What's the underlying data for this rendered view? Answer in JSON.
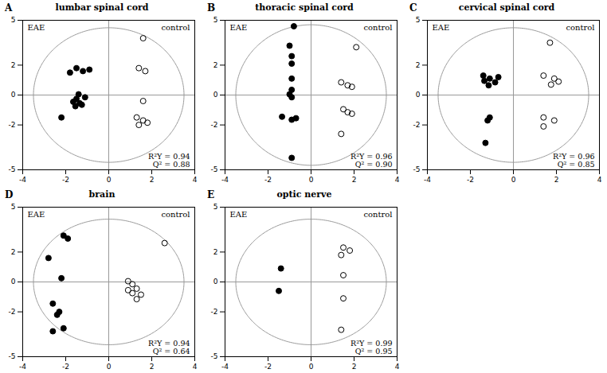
{
  "chart_data": [
    {
      "type": "scatter",
      "title": "lumbar spinal cord",
      "panel_label": "A",
      "annotations": [
        "R²Y = 0.94",
        "Q² = 0.88"
      ],
      "xlim": [
        -4,
        4
      ],
      "ylim": [
        -5,
        5
      ],
      "xticks": [
        -4,
        -2,
        0,
        2,
        4
      ],
      "yticks": [
        -5,
        -2,
        0,
        2,
        5
      ],
      "grid": false,
      "ellipse": {
        "x": 0,
        "y": 0,
        "rx": 3.5,
        "ry": 4.5,
        "color": "#999999"
      },
      "reference_lines": {
        "x": 0,
        "y": 0,
        "color": "#999999"
      },
      "series": [
        {
          "name": "EAE",
          "color": "#000000",
          "marker": "filled_circle",
          "values": [
            [
              -1.5,
              1.8
            ],
            [
              -1.8,
              1.5
            ],
            [
              -1.2,
              1.6
            ],
            [
              -0.9,
              1.7
            ],
            [
              -1.4,
              0.05
            ],
            [
              -1.1,
              -0.15
            ],
            [
              -1.5,
              -0.25
            ],
            [
              -1.65,
              -0.45
            ],
            [
              -1.35,
              -0.55
            ],
            [
              -1.25,
              -0.65
            ],
            [
              -1.55,
              -0.75
            ],
            [
              -2.2,
              -1.5
            ]
          ]
        },
        {
          "name": "control",
          "color": "#000000",
          "marker": "open_circle",
          "values": [
            [
              1.6,
              3.8
            ],
            [
              1.4,
              1.8
            ],
            [
              1.7,
              1.6
            ],
            [
              1.6,
              -0.4
            ],
            [
              1.3,
              -1.5
            ],
            [
              1.6,
              -1.7
            ],
            [
              1.8,
              -1.85
            ],
            [
              1.4,
              -2.0
            ]
          ]
        }
      ]
    },
    {
      "type": "scatter",
      "title": "thoracic spinal cord",
      "panel_label": "B",
      "annotations": [
        "R²Y = 0.96",
        "Q² = 0.90"
      ],
      "xlim": [
        -4,
        4
      ],
      "ylim": [
        -5,
        5
      ],
      "xticks": [
        -4,
        -2,
        0,
        2,
        4
      ],
      "yticks": [
        -5,
        -2,
        0,
        2,
        5
      ],
      "grid": false,
      "ellipse": {
        "x": 0,
        "y": 0,
        "rx": 3.5,
        "ry": 4.7,
        "color": "#999999"
      },
      "reference_lines": {
        "x": 0,
        "y": 0,
        "color": "#999999"
      },
      "series": [
        {
          "name": "EAE",
          "color": "#000000",
          "marker": "filled_circle",
          "values": [
            [
              -0.8,
              4.6
            ],
            [
              -1.0,
              3.3
            ],
            [
              -0.9,
              2.6
            ],
            [
              -0.9,
              2.1
            ],
            [
              -0.9,
              1.1
            ],
            [
              -0.9,
              0.35
            ],
            [
              -1.0,
              0.05
            ],
            [
              -0.9,
              -0.15
            ],
            [
              -1.35,
              -1.45
            ],
            [
              -0.9,
              -1.65
            ],
            [
              -0.7,
              -1.55
            ],
            [
              -0.9,
              -4.2
            ]
          ]
        },
        {
          "name": "control",
          "color": "#000000",
          "marker": "open_circle",
          "values": [
            [
              2.1,
              3.2
            ],
            [
              1.4,
              0.85
            ],
            [
              1.7,
              0.65
            ],
            [
              1.9,
              0.55
            ],
            [
              1.5,
              -0.95
            ],
            [
              1.7,
              -1.15
            ],
            [
              1.9,
              -1.25
            ],
            [
              1.4,
              -2.6
            ]
          ]
        }
      ]
    },
    {
      "type": "scatter",
      "title": "cervical spinal cord",
      "panel_label": "C",
      "annotations": [
        "R²Y = 0.96",
        "Q² = 0.85"
      ],
      "xlim": [
        -4,
        4
      ],
      "ylim": [
        -5,
        5
      ],
      "xticks": [
        -4,
        -2,
        0,
        2,
        4
      ],
      "yticks": [
        -5,
        -2,
        0,
        2,
        5
      ],
      "grid": false,
      "ellipse": {
        "x": 0,
        "y": 0,
        "rx": 3.5,
        "ry": 4.5,
        "color": "#999999"
      },
      "reference_lines": {
        "x": 0,
        "y": 0,
        "color": "#999999"
      },
      "series": [
        {
          "name": "EAE",
          "color": "#000000",
          "marker": "filled_circle",
          "values": [
            [
              -1.4,
              1.3
            ],
            [
              -1.1,
              1.1
            ],
            [
              -0.7,
              1.2
            ],
            [
              -1.35,
              0.95
            ],
            [
              -0.85,
              0.85
            ],
            [
              -1.15,
              0.65
            ],
            [
              -1.1,
              -1.5
            ],
            [
              -1.2,
              -1.7
            ],
            [
              -1.3,
              -3.2
            ]
          ]
        },
        {
          "name": "control",
          "color": "#000000",
          "marker": "open_circle",
          "values": [
            [
              1.7,
              3.5
            ],
            [
              1.4,
              1.3
            ],
            [
              1.9,
              1.1
            ],
            [
              2.1,
              0.9
            ],
            [
              1.75,
              0.7
            ],
            [
              1.4,
              -1.5
            ],
            [
              1.9,
              -1.7
            ],
            [
              1.4,
              -2.1
            ]
          ]
        }
      ]
    },
    {
      "type": "scatter",
      "title": "brain",
      "panel_label": "D",
      "annotations": [
        "R²Y = 0.94",
        "Q² = 0.64"
      ],
      "xlim": [
        -4,
        4
      ],
      "ylim": [
        -5,
        5
      ],
      "xticks": [
        -4,
        -2,
        0,
        2,
        4
      ],
      "yticks": [
        -5,
        -2,
        0,
        2,
        5
      ],
      "grid": false,
      "ellipse": {
        "x": 0,
        "y": 0,
        "rx": 3.5,
        "ry": 4.2,
        "color": "#999999"
      },
      "reference_lines": {
        "x": 0,
        "y": 0,
        "color": "#999999"
      },
      "series": [
        {
          "name": "EAE",
          "color": "#000000",
          "marker": "filled_circle",
          "values": [
            [
              -2.1,
              3.1
            ],
            [
              -1.9,
              2.9
            ],
            [
              -2.8,
              1.6
            ],
            [
              -2.2,
              0.25
            ],
            [
              -2.6,
              -1.45
            ],
            [
              -2.3,
              -2.0
            ],
            [
              -2.4,
              -2.2
            ],
            [
              -2.1,
              -3.1
            ],
            [
              -2.6,
              -3.3
            ]
          ]
        },
        {
          "name": "control",
          "color": "#000000",
          "marker": "open_circle",
          "values": [
            [
              2.6,
              2.6
            ],
            [
              0.9,
              0.05
            ],
            [
              1.1,
              -0.15
            ],
            [
              1.3,
              -0.45
            ],
            [
              0.9,
              -0.55
            ],
            [
              1.1,
              -0.75
            ],
            [
              1.5,
              -0.85
            ],
            [
              1.3,
              -1.15
            ]
          ]
        }
      ]
    },
    {
      "type": "scatter",
      "title": "optic nerve",
      "panel_label": "E",
      "annotations": [
        "R²Y = 0.99",
        "Q² = 0.95"
      ],
      "xlim": [
        -4,
        4
      ],
      "ylim": [
        -5,
        5
      ],
      "xticks": [
        -4,
        -2,
        0,
        2,
        4
      ],
      "yticks": [
        -5,
        -2,
        0,
        2,
        5
      ],
      "grid": false,
      "ellipse": {
        "x": 0,
        "y": 0,
        "rx": 3.5,
        "ry": 4.2,
        "color": "#999999"
      },
      "reference_lines": {
        "x": 0,
        "y": 0,
        "color": "#999999"
      },
      "series": [
        {
          "name": "EAE",
          "color": "#000000",
          "marker": "filled_circle",
          "values": [
            [
              -1.4,
              0.9
            ],
            [
              -1.5,
              -0.6
            ]
          ]
        },
        {
          "name": "control",
          "color": "#000000",
          "marker": "open_circle",
          "values": [
            [
              1.5,
              2.3
            ],
            [
              1.8,
              2.1
            ],
            [
              1.4,
              1.8
            ],
            [
              1.5,
              0.45
            ],
            [
              1.5,
              -1.1
            ],
            [
              1.4,
              -3.2
            ]
          ]
        }
      ]
    }
  ]
}
